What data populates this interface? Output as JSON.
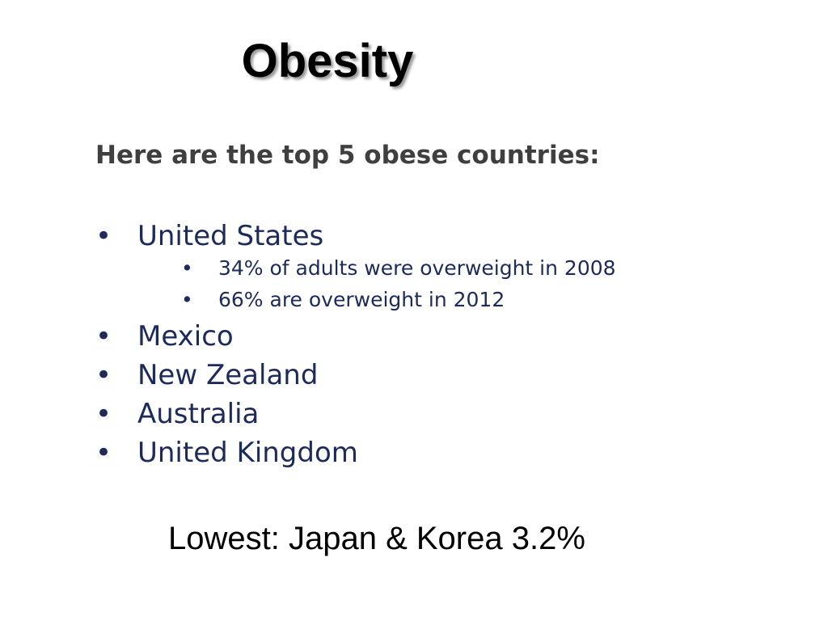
{
  "title": "Obesity",
  "intro": "Here are the top 5 obese countries:",
  "items": [
    {
      "text": "United States",
      "subitems": [
        "34% of adults were overweight in 2008",
        "66% are overweight in 2012"
      ]
    },
    {
      "text": "Mexico"
    },
    {
      "text": "New Zealand"
    },
    {
      "text": "Australia"
    },
    {
      "text": "United Kingdom"
    }
  ],
  "footer": "Lowest: Japan & Korea 3.2%"
}
